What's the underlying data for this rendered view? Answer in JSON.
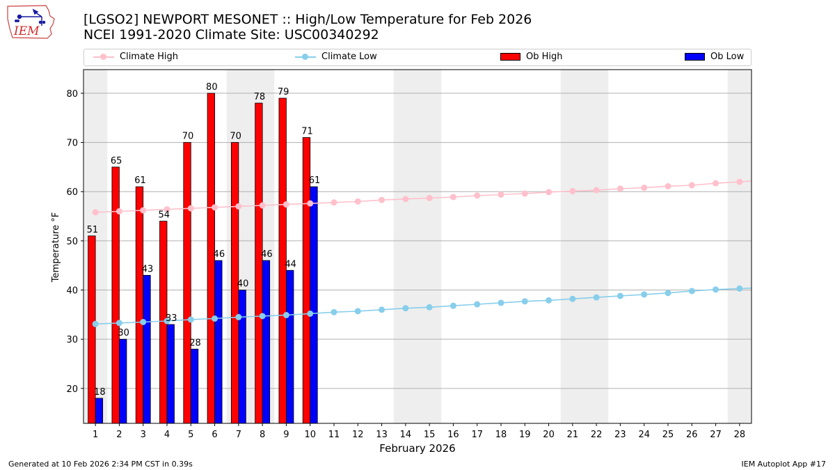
{
  "header": {
    "title_line1": "[LGSO2] NEWPORT MESONET :: High/Low Temperature for Feb 2026",
    "title_line2": "NCEI 1991-2020 Climate Site: USC00340292"
  },
  "logo": {
    "text": "IEM",
    "color": "#d62728",
    "icon": "iowa-map-logo-icon"
  },
  "legend": {
    "items": [
      {
        "label": "Climate High",
        "kind": "line",
        "color": "#ffc0cb"
      },
      {
        "label": "Climate Low",
        "kind": "line",
        "color": "#87ceeb"
      },
      {
        "label": "Ob High",
        "kind": "bar",
        "color": "#ff0000"
      },
      {
        "label": "Ob Low",
        "kind": "bar",
        "color": "#0000ff"
      }
    ]
  },
  "chart_data": {
    "type": "bar",
    "title": "[LGSO2] NEWPORT MESONET :: High/Low Temperature for Feb 2026",
    "subtitle": "NCEI 1991-2020 Climate Site: USC00340292",
    "xlabel": "February 2026",
    "ylabel": "Temperature °F",
    "ylim": [
      12.9,
      84.8
    ],
    "yticks": [
      20,
      30,
      40,
      50,
      60,
      70,
      80
    ],
    "grid": true,
    "legend_position": "top",
    "weekend_shading_days": [
      [
        1
      ],
      [
        7,
        8
      ],
      [
        14,
        15
      ],
      [
        21,
        22
      ],
      [
        28
      ]
    ],
    "categories": [
      "1",
      "2",
      "3",
      "4",
      "5",
      "6",
      "7",
      "8",
      "9",
      "10",
      "11",
      "12",
      "13",
      "14",
      "15",
      "16",
      "17",
      "18",
      "19",
      "20",
      "21",
      "22",
      "23",
      "24",
      "25",
      "26",
      "27",
      "28"
    ],
    "series": [
      {
        "name": "Ob High",
        "kind": "bar",
        "color": "#ff0000",
        "values": [
          51,
          65,
          61,
          54,
          70,
          80,
          70,
          78,
          79,
          71,
          null,
          null,
          null,
          null,
          null,
          null,
          null,
          null,
          null,
          null,
          null,
          null,
          null,
          null,
          null,
          null,
          null,
          null
        ]
      },
      {
        "name": "Ob Low",
        "kind": "bar",
        "color": "#0000ff",
        "values": [
          18,
          30,
          43,
          33,
          28,
          46,
          40,
          46,
          44,
          61,
          null,
          null,
          null,
          null,
          null,
          null,
          null,
          null,
          null,
          null,
          null,
          null,
          null,
          null,
          null,
          null,
          null,
          null
        ]
      },
      {
        "name": "Climate High",
        "kind": "line",
        "color": "#ffc0cb",
        "values": [
          55.8,
          56.0,
          56.2,
          56.4,
          56.6,
          56.8,
          57.0,
          57.2,
          57.4,
          57.6,
          57.8,
          58.0,
          58.3,
          58.5,
          58.7,
          58.9,
          59.2,
          59.4,
          59.6,
          59.9,
          60.1,
          60.3,
          60.6,
          60.8,
          61.1,
          61.3,
          61.7,
          62.0
        ]
      },
      {
        "name": "Climate Low",
        "kind": "line",
        "color": "#87ceeb",
        "values": [
          33.1,
          33.3,
          33.5,
          33.7,
          34.0,
          34.2,
          34.5,
          34.7,
          34.9,
          35.2,
          35.5,
          35.7,
          36.0,
          36.3,
          36.5,
          36.8,
          37.1,
          37.4,
          37.7,
          37.9,
          38.2,
          38.5,
          38.8,
          39.1,
          39.4,
          39.8,
          40.1,
          40.3
        ]
      }
    ]
  },
  "footer": {
    "left": "Generated at 10 Feb 2026 2:34 PM CST in 0.39s",
    "right": "IEM Autoplot App #17"
  }
}
